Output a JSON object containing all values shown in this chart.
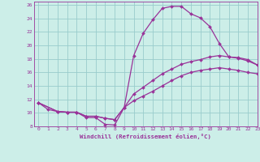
{
  "xlabel": "Windchill (Refroidissement éolien,°C)",
  "xlim": [
    -0.5,
    23
  ],
  "ylim": [
    8,
    26.5
  ],
  "xticks": [
    0,
    1,
    2,
    3,
    4,
    5,
    6,
    7,
    8,
    9,
    10,
    11,
    12,
    13,
    14,
    15,
    16,
    17,
    18,
    19,
    20,
    21,
    22,
    23
  ],
  "yticks": [
    8,
    10,
    12,
    14,
    16,
    18,
    20,
    22,
    24,
    26
  ],
  "bg_color": "#cceee8",
  "line_color": "#993399",
  "grid_color": "#99cccc",
  "line1_x": [
    0,
    1,
    2,
    3,
    4,
    5,
    6,
    7,
    8,
    9,
    10,
    11,
    12,
    13,
    14,
    15,
    16,
    17,
    18,
    19,
    20,
    21,
    22,
    23
  ],
  "line1_y": [
    11.5,
    10.5,
    10.2,
    10.1,
    10.1,
    9.3,
    9.3,
    8.3,
    8.2,
    10.8,
    18.5,
    21.8,
    23.8,
    25.5,
    25.8,
    25.8,
    24.7,
    24.1,
    22.8,
    20.3,
    18.3,
    18.2,
    17.9,
    17.1
  ],
  "line2_x": [
    0,
    2,
    3,
    4,
    5,
    6,
    7,
    8,
    9,
    10,
    11,
    12,
    13,
    14,
    15,
    16,
    17,
    18,
    19,
    20,
    21,
    22,
    23
  ],
  "line2_y": [
    11.5,
    10.2,
    10.1,
    10.1,
    9.5,
    9.5,
    9.2,
    9.0,
    10.8,
    12.8,
    13.8,
    14.8,
    15.8,
    16.5,
    17.2,
    17.6,
    17.9,
    18.3,
    18.5,
    18.3,
    18.1,
    17.7,
    17.1
  ],
  "line3_x": [
    0,
    2,
    3,
    4,
    5,
    6,
    7,
    8,
    9,
    10,
    11,
    12,
    13,
    14,
    15,
    16,
    17,
    18,
    19,
    20,
    21,
    22,
    23
  ],
  "line3_y": [
    11.5,
    10.2,
    10.1,
    10.1,
    9.5,
    9.5,
    9.2,
    9.0,
    10.8,
    11.8,
    12.5,
    13.2,
    14.0,
    14.8,
    15.5,
    16.0,
    16.3,
    16.5,
    16.7,
    16.5,
    16.3,
    16.0,
    15.8
  ]
}
